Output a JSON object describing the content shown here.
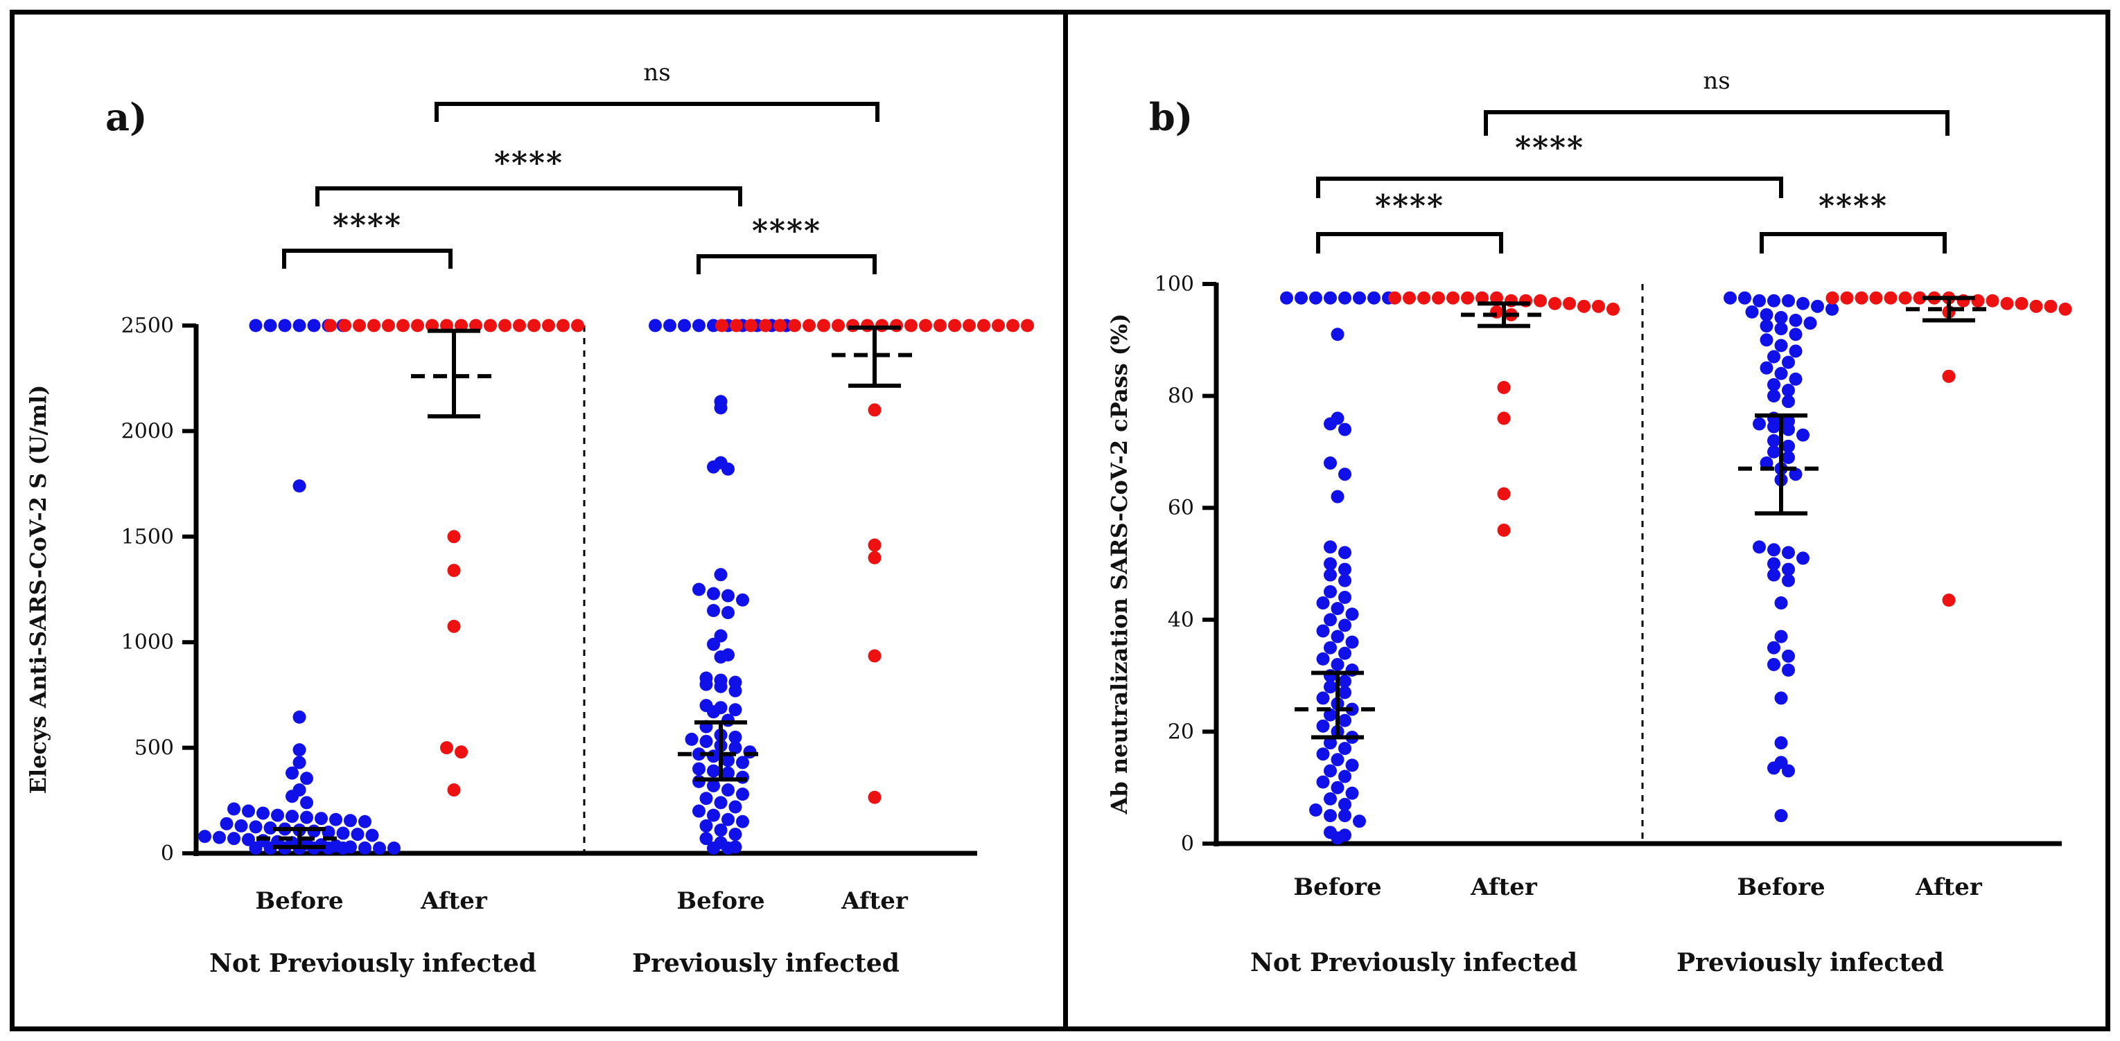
{
  "chart_data": [
    {
      "type": "scatter",
      "label": "a)",
      "title": "",
      "xlabel": "",
      "ylabel": "Elecys Anti-SARS-CoV-2 S (U/ml)",
      "ylim": [
        0,
        2500
      ],
      "yticks": [
        "0",
        "500",
        "1000",
        "1500",
        "2000",
        "2500"
      ],
      "grid": false,
      "groups": [
        {
          "name": "Not Previously infected",
          "series": [
            {
              "name": "Before",
              "color": "#1010e8",
              "values": [
                2500,
                2500,
                2500,
                2500,
                2500,
                2500,
                2500,
                1740,
                645,
                490,
                430,
                380,
                355,
                300,
                270,
                240,
                210,
                200,
                190,
                180,
                175,
                170,
                165,
                160,
                155,
                150,
                140,
                130,
                125,
                120,
                115,
                110,
                105,
                100,
                95,
                90,
                85,
                80,
                75,
                70,
                65,
                60,
                55,
                50,
                45,
                40,
                35,
                30,
                25,
                20,
                18,
                15,
                12,
                10,
                8,
                6,
                5,
                3
              ],
              "mean": 70,
              "err_low": 30,
              "err_high": 115
            },
            {
              "name": "After",
              "color": "#ee1111",
              "values": [
                2500,
                2500,
                2500,
                2500,
                2500,
                2500,
                2500,
                2500,
                2500,
                2500,
                2500,
                2500,
                2500,
                2500,
                2500,
                2500,
                2500,
                2500,
                1500,
                1340,
                1075,
                500,
                480,
                300
              ],
              "mean": 2260,
              "err_low": 2070,
              "err_high": 2475
            }
          ]
        },
        {
          "name": "Previously infected",
          "series": [
            {
              "name": "Before",
              "color": "#1010e8",
              "values": [
                2500,
                2500,
                2500,
                2500,
                2500,
                2500,
                2500,
                2500,
                2500,
                2500,
                2140,
                2110,
                1850,
                1830,
                1820,
                1320,
                1250,
                1230,
                1220,
                1200,
                1150,
                1140,
                1030,
                990,
                940,
                930,
                830,
                820,
                810,
                800,
                790,
                770,
                700,
                690,
                680,
                670,
                630,
                600,
                560,
                550,
                540,
                530,
                510,
                500,
                480,
                470,
                460,
                440,
                430,
                400,
                390,
                380,
                360,
                340,
                320,
                300,
                280,
                260,
                240,
                220,
                200,
                180,
                160,
                150,
                130,
                110,
                90,
                70,
                50,
                30,
                15,
                5
              ],
              "mean": 470,
              "err_low": 350,
              "err_high": 620
            },
            {
              "name": "After",
              "color": "#ee1111",
              "values": [
                2500,
                2500,
                2500,
                2500,
                2500,
                2500,
                2500,
                2500,
                2500,
                2500,
                2500,
                2500,
                2500,
                2500,
                2500,
                2500,
                2500,
                2500,
                2500,
                2500,
                2500,
                2500,
                2100,
                1460,
                1400,
                935,
                265
              ],
              "mean": 2360,
              "err_low": 2215,
              "err_high": 2490
            }
          ]
        }
      ],
      "annotations": [
        {
          "text": "****",
          "from": "Not Previously infected / Before",
          "to": "Not Previously infected / After"
        },
        {
          "text": "****",
          "from": "Previously infected / Before",
          "to": "Previously infected / After"
        },
        {
          "text": "****",
          "from": "Not Previously infected / Before",
          "to": "Previously infected / Before"
        },
        {
          "text": "ns",
          "from": "Not Previously infected / After",
          "to": "Previously infected / After"
        }
      ]
    },
    {
      "type": "scatter",
      "label": "b)",
      "title": "",
      "xlabel": "",
      "ylabel": "Ab neutralization SARS-CoV-2 cPass (%)",
      "ylim": [
        0,
        100
      ],
      "yticks": [
        "0",
        "20",
        "40",
        "60",
        "80",
        "100"
      ],
      "grid": false,
      "groups": [
        {
          "name": "Not Previously infected",
          "series": [
            {
              "name": "Before",
              "color": "#1010e8",
              "values": [
                97.5,
                97.5,
                97.5,
                97.5,
                97.5,
                97.5,
                97.5,
                97.5,
                91,
                76,
                75,
                74,
                68,
                66,
                62,
                53,
                52,
                50,
                49,
                48,
                47,
                45,
                44,
                43,
                42,
                41,
                40,
                39,
                38,
                37,
                36,
                35,
                34,
                33,
                32,
                31,
                30,
                29,
                28,
                27,
                26,
                25,
                24,
                23,
                22,
                21,
                20,
                19,
                18,
                17,
                16,
                15,
                14,
                13,
                12,
                11,
                10,
                9,
                8,
                7,
                6,
                5,
                5,
                4,
                2,
                1.5,
                1
              ],
              "mean": 24,
              "err_low": 19,
              "err_high": 30.5
            },
            {
              "name": "After",
              "color": "#ee1111",
              "values": [
                97.5,
                97.5,
                97.5,
                97.5,
                97.5,
                97.5,
                97.5,
                97.5,
                97,
                97,
                97,
                96.5,
                96.5,
                96,
                96,
                95.5,
                95,
                94.5,
                81.5,
                76,
                62.5,
                56
              ],
              "mean": 94.5,
              "err_low": 92.5,
              "err_high": 96.5
            }
          ]
        },
        {
          "name": "Previously infected",
          "series": [
            {
              "name": "Before",
              "color": "#1010e8",
              "values": [
                97.5,
                97.5,
                97,
                97,
                97,
                96.5,
                96,
                95.5,
                95,
                94.5,
                94,
                93.5,
                93,
                92.5,
                92,
                91,
                90,
                89,
                88,
                87,
                86,
                85,
                84,
                83,
                82,
                81,
                80,
                79,
                76,
                75.5,
                75,
                74.5,
                74,
                73,
                72,
                71,
                70,
                69,
                68,
                67,
                66,
                65,
                53,
                52.5,
                52,
                51,
                50,
                49,
                48,
                47,
                43,
                37,
                35,
                33.5,
                32,
                31,
                26,
                18,
                14.5,
                13.5,
                13,
                5
              ],
              "mean": 67,
              "err_low": 59,
              "err_high": 76.5
            },
            {
              "name": "After",
              "color": "#ee1111",
              "values": [
                97.5,
                97.5,
                97.5,
                97.5,
                97.5,
                97.5,
                97.5,
                97.5,
                97.5,
                97,
                97,
                97,
                96.5,
                96.5,
                96,
                96,
                95.5,
                95,
                83.5,
                43.5
              ],
              "mean": 95.5,
              "err_low": 93.5,
              "err_high": 97.5
            }
          ]
        }
      ],
      "annotations": [
        {
          "text": "****",
          "from": "Not Previously infected / Before",
          "to": "Not Previously infected / After"
        },
        {
          "text": "****",
          "from": "Previously infected / Before",
          "to": "Previously infected / After"
        },
        {
          "text": "****",
          "from": "Not Previously infected / Before",
          "to": "Previously infected / Before"
        },
        {
          "text": "ns",
          "from": "Not Previously infected / After",
          "to": "Previously infected / After"
        }
      ]
    }
  ]
}
